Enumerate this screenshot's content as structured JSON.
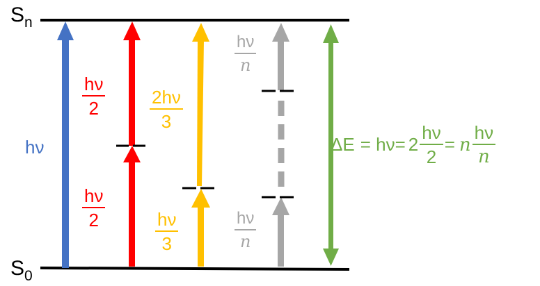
{
  "colors": {
    "blue": "#4472c4",
    "red": "#ff0000",
    "yellow": "#ffc000",
    "gray": "#a6a6a6",
    "green": "#70ad47",
    "black": "#000000"
  },
  "states": {
    "upper": {
      "base": "S",
      "sub": "n"
    },
    "lower": {
      "base": "S",
      "sub": "0"
    }
  },
  "labels": {
    "blue": "hν",
    "red_top": {
      "num": "hν",
      "den": "2"
    },
    "red_bottom": {
      "num": "hν",
      "den": "2"
    },
    "yellow_top": {
      "num": "2hν",
      "den": "3"
    },
    "yellow_bottom": {
      "num": "hν",
      "den": "3"
    },
    "gray_top": {
      "num": "hν",
      "den": "n"
    },
    "gray_bottom": {
      "num": "hν",
      "den": "n"
    }
  },
  "equation": {
    "lhs": "ΔE",
    "eq1": "= hν=",
    "coef2": "2",
    "frac2": {
      "num": "hν",
      "den": "2"
    },
    "eq2": "=",
    "coefn": "n",
    "fracn": {
      "num": "hν",
      "den": "n"
    }
  },
  "arrows": [
    {
      "id": "blue",
      "color_key": "blue",
      "style": "solid",
      "absorbed_fraction": "1"
    },
    {
      "id": "red",
      "color_key": "red",
      "style": "solid",
      "absorbed_fraction": "1/2 + 1/2"
    },
    {
      "id": "yellow",
      "color_key": "yellow",
      "style": "solid",
      "absorbed_fraction": "1/3 + 2/3"
    },
    {
      "id": "gray",
      "color_key": "gray",
      "style": "dashed",
      "absorbed_fraction": "1/n + ... + 1/n"
    },
    {
      "id": "green",
      "color_key": "green",
      "style": "double-headed",
      "absorbed_fraction": "ΔE"
    }
  ]
}
